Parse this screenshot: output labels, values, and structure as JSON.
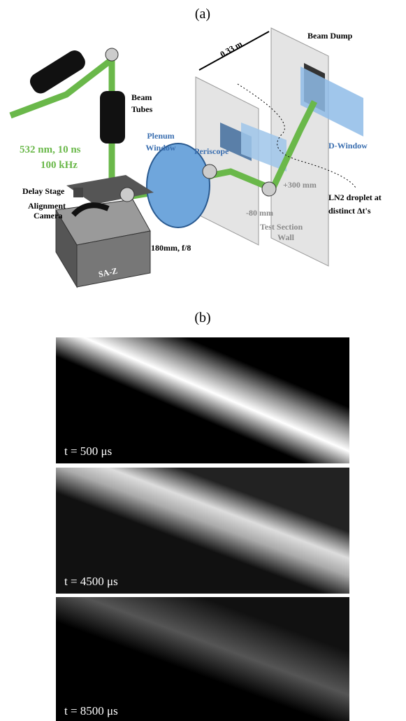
{
  "panel_a": {
    "label": "(a)",
    "labels": {
      "distance": "0.33 m",
      "beam_dump": "Beam Dump",
      "beam_tubes": [
        "Beam",
        "Tubes"
      ],
      "plenum_window": [
        "Plenum",
        "Window"
      ],
      "periscope": "Periscope",
      "d_window": "D-Window",
      "laser": [
        "532 nm, 10 ns",
        "100 kHz"
      ],
      "delay_stage": "Delay Stage",
      "alignment_camera": [
        "Alignment",
        "Camera"
      ],
      "plus_300": "+300 mm",
      "minus_80": "-80 mm",
      "test_section_wall": [
        "Test Section",
        "Wall"
      ],
      "droplet": [
        "LN2 droplet at",
        "distinct Δt's"
      ],
      "lens": "180mm, f/8",
      "camera": "SA-Z"
    }
  },
  "panel_b": {
    "label": "(b)",
    "frames": [
      {
        "caption": "t = 500 μs"
      },
      {
        "caption": "t = 4500 μs"
      },
      {
        "caption": "t = 8500 μs"
      }
    ]
  }
}
